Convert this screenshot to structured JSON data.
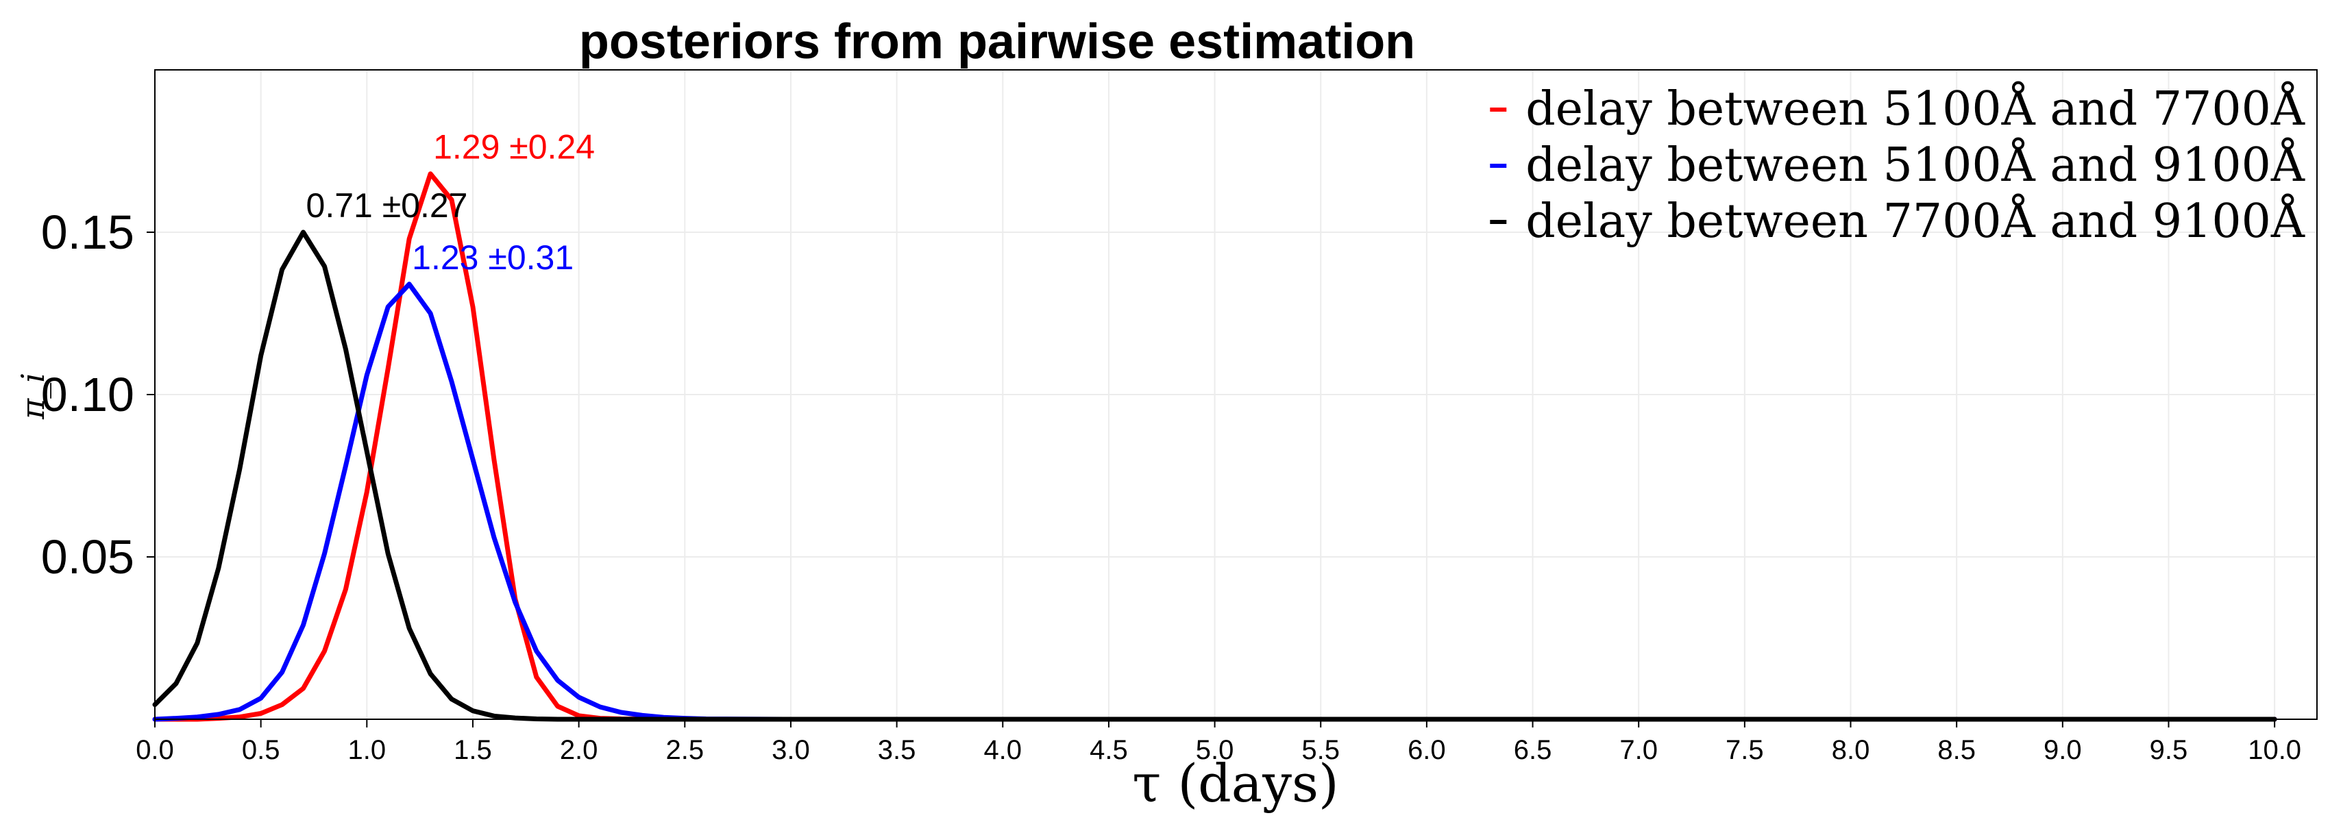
{
  "chart_data": {
    "type": "line",
    "title": "posteriors from pairwise estimation",
    "xlabel": "τ (days)",
    "ylabel": "π_i",
    "xlim": [
      0,
      10.2
    ],
    "ylim": [
      0,
      0.2
    ],
    "xticks": [
      "0.0",
      "0.5",
      "1.0",
      "1.5",
      "2.0",
      "2.5",
      "3.0",
      "3.5",
      "4.0",
      "4.5",
      "5.0",
      "5.5",
      "6.0",
      "6.5",
      "7.0",
      "7.5",
      "8.0",
      "8.5",
      "9.0",
      "9.5",
      "10.0"
    ],
    "yticks": [
      "0.05",
      "0.10",
      "0.15"
    ],
    "grid": true,
    "legend_position": "top-right",
    "series": [
      {
        "name": "delay between 5100Å and 7700Å",
        "color": "#ff0000",
        "annotation": "1.29 ±0.24",
        "peak": [
          1.3,
          0.168
        ],
        "x": [
          0.0,
          0.1,
          0.2,
          0.3,
          0.4,
          0.5,
          0.6,
          0.7,
          0.8,
          0.9,
          1.0,
          1.1,
          1.2,
          1.3,
          1.4,
          1.5,
          1.6,
          1.7,
          1.8,
          1.9,
          2.0,
          2.1,
          2.2,
          2.5,
          3.0,
          10.0
        ],
        "values": [
          0.0,
          0.0,
          0.0,
          0.0003,
          0.0007,
          0.0018,
          0.0045,
          0.0095,
          0.021,
          0.04,
          0.07,
          0.108,
          0.148,
          0.168,
          0.16,
          0.127,
          0.08,
          0.037,
          0.013,
          0.004,
          0.0011,
          0.0003,
          0.0001,
          0.0,
          0.0,
          0.0
        ]
      },
      {
        "name": "delay between 5100Å and 9100Å",
        "color": "#0000ff",
        "annotation": "1.23 ±0.31",
        "peak": [
          1.2,
          0.134
        ],
        "x": [
          0.0,
          0.1,
          0.2,
          0.3,
          0.4,
          0.5,
          0.6,
          0.7,
          0.8,
          0.9,
          1.0,
          1.1,
          1.2,
          1.3,
          1.4,
          1.5,
          1.6,
          1.7,
          1.8,
          1.9,
          2.0,
          2.1,
          2.2,
          2.3,
          2.4,
          2.5,
          2.6,
          3.0,
          10.0
        ],
        "values": [
          0.0,
          0.0003,
          0.0007,
          0.0015,
          0.003,
          0.0065,
          0.0145,
          0.029,
          0.051,
          0.078,
          0.106,
          0.127,
          0.134,
          0.125,
          0.104,
          0.08,
          0.056,
          0.036,
          0.021,
          0.012,
          0.0068,
          0.0038,
          0.0021,
          0.0012,
          0.0006,
          0.0003,
          0.0001,
          0.0,
          0.0
        ]
      },
      {
        "name": "delay between 7700Å and 9100Å",
        "color": "#000000",
        "annotation": "0.71 ±0.27",
        "peak": [
          0.7,
          0.15
        ],
        "x": [
          0.0,
          0.1,
          0.2,
          0.3,
          0.4,
          0.5,
          0.6,
          0.7,
          0.8,
          0.9,
          1.0,
          1.1,
          1.2,
          1.3,
          1.4,
          1.5,
          1.6,
          1.7,
          1.8,
          1.9,
          2.0,
          10.0
        ],
        "values": [
          0.0045,
          0.011,
          0.0235,
          0.0465,
          0.077,
          0.112,
          0.1385,
          0.15,
          0.1395,
          0.114,
          0.0825,
          0.051,
          0.028,
          0.014,
          0.0062,
          0.0026,
          0.001,
          0.0004,
          0.0001,
          0.0,
          0.0,
          0.0
        ]
      }
    ]
  }
}
